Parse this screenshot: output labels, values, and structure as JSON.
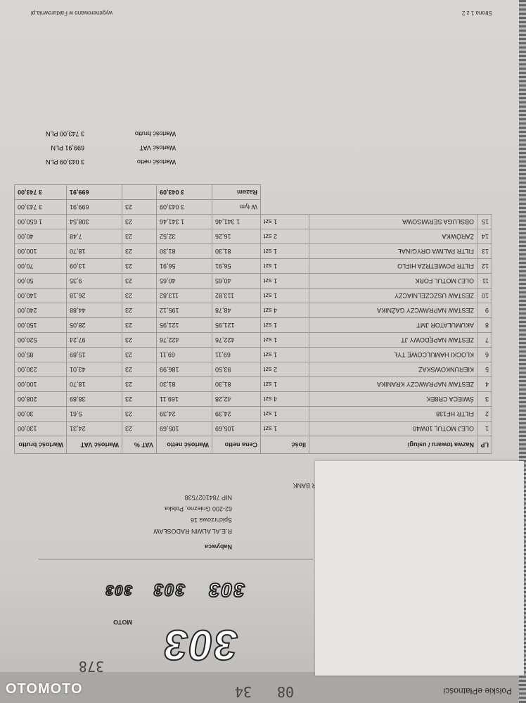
{
  "header": {
    "handwritten_numbers": [
      "08",
      "34"
    ],
    "handwritten_code": "378",
    "payment_logo_text": "Polskie ePłatności"
  },
  "logos": {
    "brand_big": "303",
    "brand_big_sub": "MOTO",
    "brand_small": [
      "303",
      "303",
      "303"
    ]
  },
  "buyer": {
    "label": "Nabywca",
    "name": "R.E.AL ALWIN RADOSŁAW",
    "street": "Spichrzowa 16",
    "city": "62-200 Gniezno, Polska",
    "nip": "NIP 7841027538",
    "bank_partial": "R BANK"
  },
  "table": {
    "headers": [
      "LP",
      "Nazwa towaru / usługi",
      "Ilość",
      "Cena netto",
      "Wartość netto",
      "VAT %",
      "Wartość VAT",
      "Wartość brutto"
    ],
    "rows": [
      [
        "1",
        "OLEJ MOTUL 10W40",
        "1 szt",
        "105,69",
        "105,69",
        "23",
        "24,31",
        "130,00"
      ],
      [
        "2",
        "FILTR HF138",
        "1 szt",
        "24,39",
        "24,39",
        "23",
        "5,61",
        "30,00"
      ],
      [
        "3",
        "ŚWIECA CR8EK",
        "4 szt",
        "42,28",
        "169,11",
        "23",
        "38,89",
        "208,00"
      ],
      [
        "4",
        "ZESTAW NAPRAWCZY KRANIKA",
        "1 szt",
        "81,30",
        "81,30",
        "23",
        "18,70",
        "100,00"
      ],
      [
        "5",
        "KIERUNKOWSKAZ",
        "2 szt",
        "93,50",
        "186,99",
        "23",
        "43,01",
        "230,00"
      ],
      [
        "6",
        "KLOCKI HAMULCOWE TYŁ",
        "1 szt",
        "69,11",
        "69,11",
        "23",
        "15,89",
        "85,00"
      ],
      [
        "7",
        "ZESTAW NAPĘDOWY JT",
        "1 szt",
        "422,76",
        "422,76",
        "23",
        "97,24",
        "520,00"
      ],
      [
        "8",
        "AKUMULATOR JMT",
        "1 szt",
        "121,95",
        "121,95",
        "23",
        "28,05",
        "150,00"
      ],
      [
        "9",
        "ZESTAW NAPRAWCZY GAŹNIKA",
        "4 szt",
        "48,78",
        "195,12",
        "23",
        "44,88",
        "240,00"
      ],
      [
        "10",
        "ZESTAW USZCZELNIACZY",
        "1 szt",
        "113,82",
        "113,82",
        "23",
        "26,18",
        "140,00"
      ],
      [
        "11",
        "OLEJ MOTUL FORK",
        "1 szt",
        "40,65",
        "40,65",
        "23",
        "9,35",
        "50,00"
      ],
      [
        "12",
        "FILTR POWIETRZA HIFLO",
        "1 szt",
        "56,91",
        "56,91",
        "23",
        "13,09",
        "70,00"
      ],
      [
        "13",
        "FILTR PALIWA ORYGINAŁ",
        "1 szt",
        "81,30",
        "81,30",
        "23",
        "18,70",
        "100,00"
      ],
      [
        "14",
        "ŻARÓWKA",
        "2 szt",
        "16,26",
        "32,52",
        "23",
        "7,48",
        "40,00"
      ],
      [
        "15",
        "OBSŁUGA SERWISOWA",
        "1 szt",
        "1 341,46",
        "1 341,46",
        "23",
        "308,54",
        "1 650,00"
      ]
    ],
    "w_tym": {
      "label": "W tym",
      "netto": "3 043,09",
      "vat_rate": "23",
      "vat": "699,91",
      "brutto": "3 743,00"
    },
    "razem": {
      "label": "Razem",
      "netto": "3 043,09",
      "vat_rate": "",
      "vat": "699,91",
      "brutto": "3 743,00"
    }
  },
  "summary": {
    "netto_label": "Wartość netto",
    "netto_value": "3 043,09 PLN",
    "vat_label": "Wartość VAT",
    "vat_value": "699,91 PLN",
    "brutto_label": "Wartość brutto",
    "brutto_value": "3 743,00 PLN"
  },
  "footer": {
    "page": "Strona 1 z 2",
    "generated": "wygenerowano w Fakturownia.pl"
  },
  "watermark": "OTOMOTO"
}
